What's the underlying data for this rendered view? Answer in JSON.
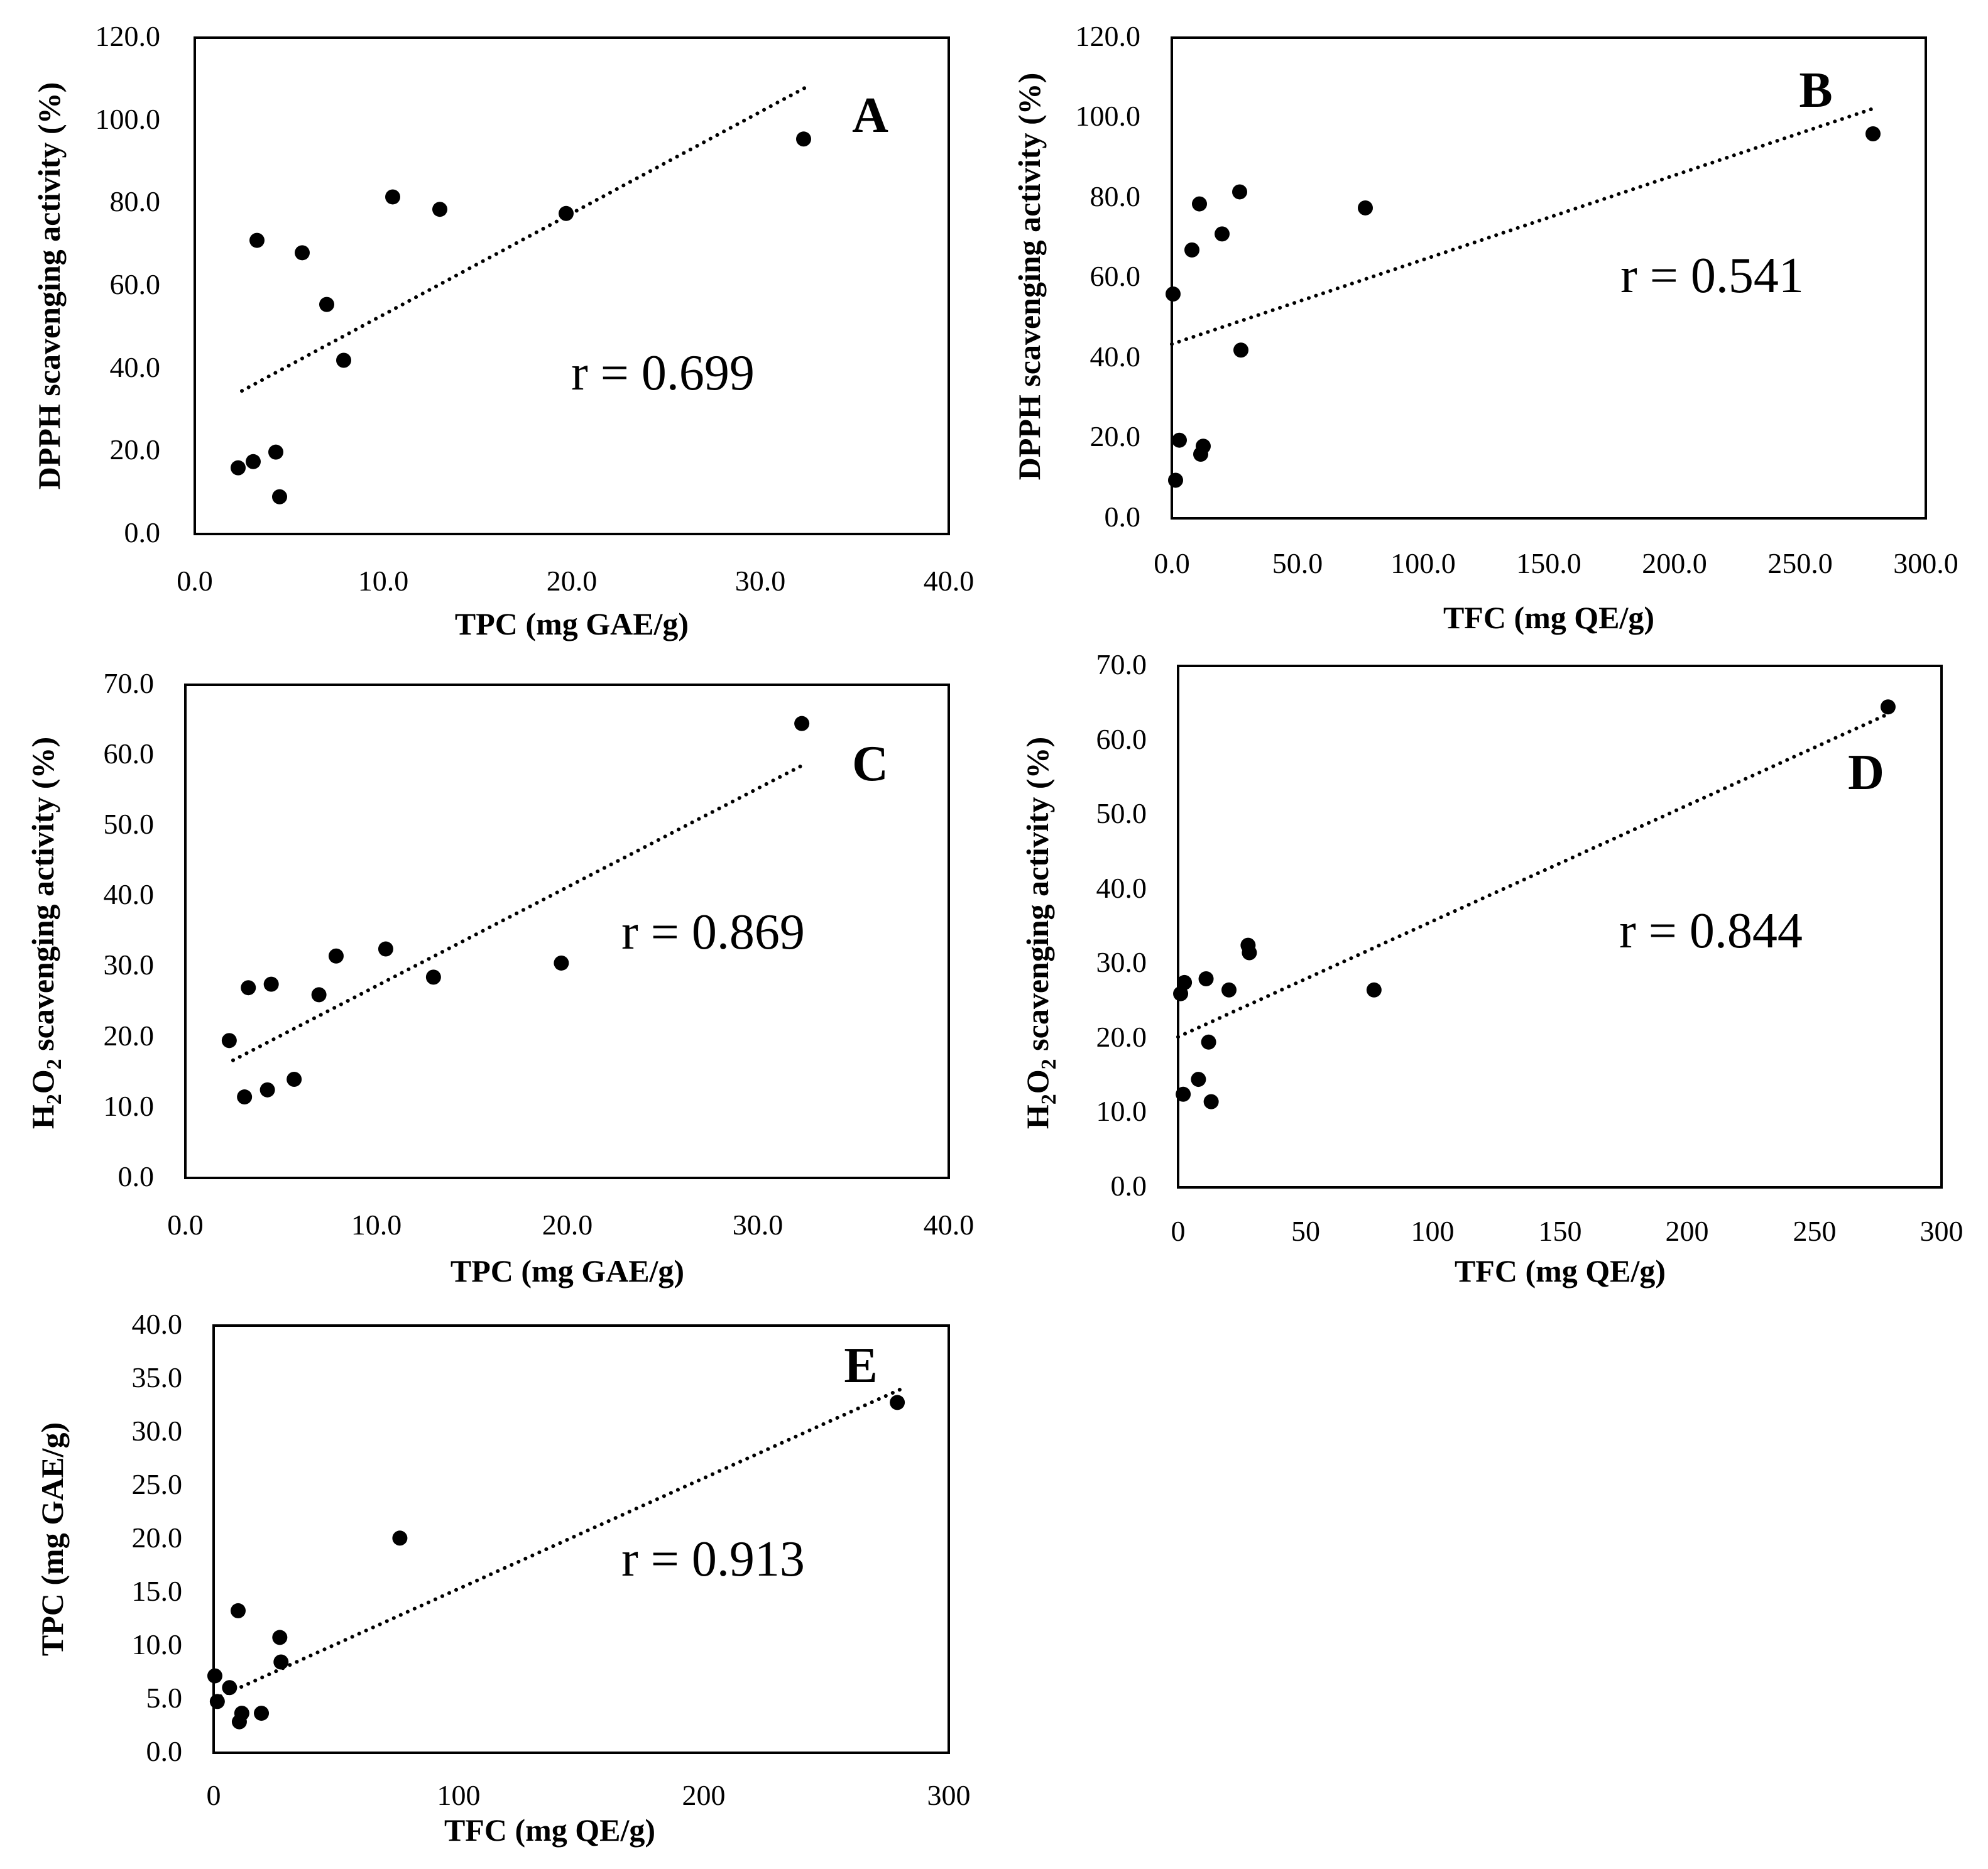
{
  "figure": {
    "marker_color": "#000000",
    "line_color": "#000000",
    "background": "#ffffff"
  },
  "chart_data": [
    {
      "id": "A",
      "type": "scatter",
      "panel_label": "A",
      "xlabel": "TPC  (mg GAE/g)",
      "ylabel": "DPPH scavenging activity (%)",
      "annotation": "r = 0.699",
      "xlim": [
        0,
        40
      ],
      "ylim": [
        0,
        120
      ],
      "xticks": [
        "0.0",
        "10.0",
        "20.0",
        "30.0",
        "40.0"
      ],
      "yticks": [
        "0.0",
        "20.0",
        "40.0",
        "60.0",
        "80.0",
        "100.0",
        "120.0"
      ],
      "points": [
        [
          2.3,
          16.0
        ],
        [
          3.1,
          17.5
        ],
        [
          3.3,
          71.0
        ],
        [
          4.3,
          19.8
        ],
        [
          4.5,
          9.0
        ],
        [
          5.7,
          68.0
        ],
        [
          7.0,
          55.5
        ],
        [
          7.9,
          42.0
        ],
        [
          10.5,
          81.5
        ],
        [
          13.0,
          78.5
        ],
        [
          19.7,
          77.5
        ],
        [
          32.3,
          95.5
        ]
      ],
      "trendline": [
        [
          2.5,
          34.6
        ],
        [
          32.5,
          108.2
        ]
      ]
    },
    {
      "id": "B",
      "type": "scatter",
      "panel_label": "B",
      "xlabel": "TFC (mg QE/g)",
      "ylabel": "DPPH scavenging activity (%)",
      "annotation": "r = 0.541",
      "xlim": [
        0,
        300
      ],
      "ylim": [
        0,
        120
      ],
      "xticks": [
        "0.0",
        "50.0",
        "100.0",
        "150.0",
        "200.0",
        "250.0",
        "300.0"
      ],
      "yticks": [
        "0.0",
        "20.0",
        "40.0",
        "60.0",
        "80.0",
        "100.0",
        "120.0"
      ],
      "points": [
        [
          0.5,
          56.0
        ],
        [
          1.5,
          9.5
        ],
        [
          3.0,
          19.5
        ],
        [
          8.0,
          67.0
        ],
        [
          11.0,
          78.5
        ],
        [
          11.5,
          16.0
        ],
        [
          12.5,
          18.0
        ],
        [
          20.0,
          71.0
        ],
        [
          27.0,
          81.5
        ],
        [
          27.5,
          42.0
        ],
        [
          77.0,
          77.5
        ],
        [
          279.0,
          96.0
        ]
      ],
      "trendline": [
        [
          0,
          43.5
        ],
        [
          280,
          102.5
        ]
      ]
    },
    {
      "id": "C",
      "type": "scatter",
      "panel_label": "C",
      "xlabel": "TPC (mg GAE/g)",
      "ylabel_main": "H",
      "ylabel_sub1": "2",
      "ylabel_mid": "O",
      "ylabel_sub2": "2",
      "ylabel_rest": " scavenging activity (%)",
      "annotation": "r = 0.869",
      "xlim": [
        0,
        40
      ],
      "ylim": [
        0,
        70
      ],
      "xticks": [
        "0.0",
        "10.0",
        "20.0",
        "30.0",
        "40.0"
      ],
      "yticks": [
        "0.0",
        "10.0",
        "20.0",
        "30.0",
        "40.0",
        "50.0",
        "60.0",
        "70.0"
      ],
      "points": [
        [
          2.3,
          19.5
        ],
        [
          3.1,
          11.5
        ],
        [
          3.3,
          27.0
        ],
        [
          4.3,
          12.5
        ],
        [
          4.5,
          27.5
        ],
        [
          5.7,
          14.0
        ],
        [
          7.0,
          26.0
        ],
        [
          7.9,
          31.5
        ],
        [
          10.5,
          32.5
        ],
        [
          13.0,
          28.5
        ],
        [
          19.7,
          30.5
        ],
        [
          32.3,
          64.5
        ]
      ],
      "trendline": [
        [
          2.5,
          16.7
        ],
        [
          32.5,
          58.8
        ]
      ]
    },
    {
      "id": "D",
      "type": "scatter",
      "panel_label": "D",
      "xlabel": "TFC (mg QE/g)",
      "ylabel_main": "H",
      "ylabel_sub1": "2",
      "ylabel_mid": "O",
      "ylabel_sub2": "2",
      "ylabel_rest": " scavenging activity (%)",
      "annotation": "r = 0.844",
      "xlim": [
        0,
        300
      ],
      "ylim": [
        0,
        70
      ],
      "xticks": [
        "0",
        "50",
        "100",
        "150",
        "200",
        "250",
        "300"
      ],
      "yticks": [
        "0.0",
        "10.0",
        "20.0",
        "30.0",
        "40.0",
        "50.0",
        "60.0",
        "70.0"
      ],
      "points": [
        [
          1.0,
          26.0
        ],
        [
          2.0,
          12.5
        ],
        [
          2.5,
          27.5
        ],
        [
          8.0,
          14.5
        ],
        [
          11.0,
          28.0
        ],
        [
          12.0,
          19.5
        ],
        [
          13.0,
          11.5
        ],
        [
          20.0,
          26.5
        ],
        [
          27.5,
          32.5
        ],
        [
          28.0,
          31.5
        ],
        [
          77.0,
          26.5
        ],
        [
          279.0,
          64.5
        ]
      ],
      "trendline": [
        [
          0,
          20.2
        ],
        [
          280,
          63.7
        ]
      ]
    },
    {
      "id": "E",
      "type": "scatter",
      "panel_label": "E",
      "xlabel": "TFC  (mg QE/g)",
      "ylabel": "TPC (mg GAE/g)",
      "annotation": "r = 0.913",
      "xlim": [
        0,
        300
      ],
      "ylim": [
        0,
        40
      ],
      "xticks": [
        "0",
        "100",
        "200",
        "300"
      ],
      "yticks": [
        "0.0",
        "5.0",
        "10.0",
        "15.0",
        "20.0",
        "25.0",
        "30.0",
        "35.0",
        "40.0"
      ],
      "points": [
        [
          0.5,
          7.2
        ],
        [
          1.5,
          4.8
        ],
        [
          6.5,
          6.1
        ],
        [
          10.0,
          13.3
        ],
        [
          10.5,
          2.9
        ],
        [
          11.5,
          3.7
        ],
        [
          19.5,
          3.7
        ],
        [
          27.0,
          10.8
        ],
        [
          27.5,
          8.5
        ],
        [
          76.0,
          20.1
        ],
        [
          279.0,
          32.8
        ]
      ],
      "trendline": [
        [
          0,
          5.0
        ],
        [
          280,
          34.0
        ]
      ]
    }
  ]
}
